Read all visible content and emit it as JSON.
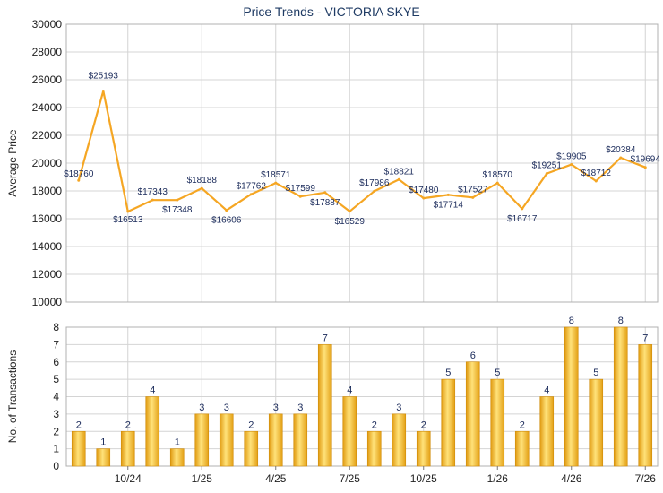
{
  "chart_data": [
    {
      "type": "line",
      "title": "Price Trends - VICTORIA SKYE",
      "ylabel": "Average Price",
      "ylim": [
        10000,
        30000
      ],
      "yticks": [
        "10000",
        "12000",
        "14000",
        "16000",
        "18000",
        "20000",
        "22000",
        "24000",
        "26000",
        "28000",
        "30000"
      ],
      "grid": true,
      "color": "#f5a623",
      "series": [
        {
          "values": [
            18760,
            25193,
            16513,
            17343,
            17348,
            18188,
            16606,
            17762,
            18571,
            17599,
            17887,
            16529,
            17986,
            18821,
            17480,
            17714,
            17527,
            18570,
            16717,
            19251,
            19905,
            18712,
            20384,
            19694
          ],
          "labels": [
            "$18760",
            "$25193",
            "$16513",
            "$17343",
            "$17348",
            "$18188",
            "$16606",
            "$17762",
            "$18571",
            "$17599",
            "$17887",
            "$16529",
            "$17986",
            "$18821",
            "$17480",
            "$17714",
            "$17527",
            "$18570",
            "$16717",
            "$19251",
            "$19905",
            "$18712",
            "$20384",
            "$19694"
          ]
        }
      ]
    },
    {
      "type": "bar",
      "ylabel": "No. of Transactions",
      "ylim": [
        0,
        8
      ],
      "yticks": [
        "0",
        "1",
        "2",
        "3",
        "4",
        "5",
        "6",
        "7",
        "8"
      ],
      "grid": true,
      "color": "#f5b324",
      "values": [
        2,
        1,
        2,
        4,
        1,
        3,
        3,
        2,
        3,
        3,
        7,
        4,
        2,
        3,
        2,
        5,
        6,
        5,
        2,
        4,
        8,
        5,
        8,
        7
      ],
      "xtick_labels": [
        "10/24",
        "1/25",
        "4/25",
        "7/25",
        "10/25",
        "1/26",
        "4/26",
        "7/26"
      ]
    }
  ]
}
